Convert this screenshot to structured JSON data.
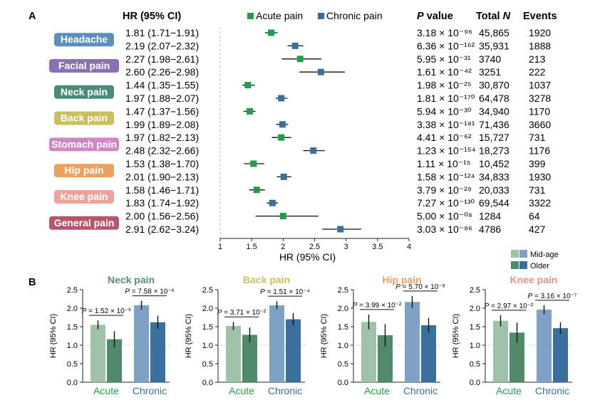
{
  "panel_a": {
    "label": "A",
    "header": {
      "hr": "HR (95% CI)",
      "acute": "Acute pain",
      "chronic": "Chronic pain",
      "p": "P value",
      "total": "Total N",
      "events": "Events"
    },
    "xlabel": "HR (95% CI)",
    "ticks": [
      "1",
      "1.5",
      "2",
      "2.5",
      "3",
      "3.5",
      "4"
    ],
    "colors": {
      "acute": "#1e9e4b",
      "chronic": "#3a6f9d"
    },
    "groups": [
      {
        "name": "Headache",
        "color": "#5b8fbc",
        "rows": [
          {
            "type": "acute",
            "hr_text": "1.81 (1.71−1.91)",
            "hr": 1.81,
            "lo": 1.71,
            "hi": 1.91,
            "p": "3.18 × 10⁻⁹⁶",
            "n": "45,865",
            "events": "1920"
          },
          {
            "type": "chronic",
            "hr_text": "2.19 (2.07−2.32)",
            "hr": 2.19,
            "lo": 2.07,
            "hi": 2.32,
            "p": "6.36 × 10⁻¹⁶²",
            "n": "35,931",
            "events": "1888"
          }
        ]
      },
      {
        "name": "Facial pain",
        "color": "#8a70b8",
        "rows": [
          {
            "type": "acute",
            "hr_text": "2.27 (1.98−2.61)",
            "hr": 2.27,
            "lo": 1.98,
            "hi": 2.61,
            "p": "5.95 × 10⁻³¹",
            "n": "3740",
            "events": "213"
          },
          {
            "type": "chronic",
            "hr_text": "2.60 (2.26−2.98)",
            "hr": 2.6,
            "lo": 2.26,
            "hi": 2.98,
            "p": "1.61 × 10⁻⁴²",
            "n": "3251",
            "events": "222"
          }
        ]
      },
      {
        "name": "Neck pain",
        "color": "#4a8a78",
        "rows": [
          {
            "type": "acute",
            "hr_text": "1.44 (1.35−1.55)",
            "hr": 1.44,
            "lo": 1.35,
            "hi": 1.55,
            "p": "1.98 × 10⁻²⁵",
            "n": "30,870",
            "events": "1037"
          },
          {
            "type": "chronic",
            "hr_text": "1.97 (1.88−2.07)",
            "hr": 1.97,
            "lo": 1.88,
            "hi": 2.07,
            "p": "1.81 × 10⁻¹⁷⁰",
            "n": "64,478",
            "events": "3278"
          }
        ]
      },
      {
        "name": "Back pain",
        "color": "#c9bf5e",
        "rows": [
          {
            "type": "acute",
            "hr_text": "1.47 (1.37−1.56)",
            "hr": 1.47,
            "lo": 1.37,
            "hi": 1.56,
            "p": "5.94 × 10⁻³⁰",
            "n": "34,940",
            "events": "1170"
          },
          {
            "type": "chronic",
            "hr_text": "1.99 (1.89−2.08)",
            "hr": 1.99,
            "lo": 1.89,
            "hi": 2.08,
            "p": "3.38 × 10⁻¹⁸¹",
            "n": "71,436",
            "events": "3660"
          }
        ]
      },
      {
        "name": "Stomach pain",
        "color": "#cf86c2",
        "rows": [
          {
            "type": "acute",
            "hr_text": "1.97 (1.82−2.13)",
            "hr": 1.97,
            "lo": 1.82,
            "hi": 2.13,
            "p": "4.41 × 10⁻⁶²",
            "n": "15,727",
            "events": "731"
          },
          {
            "type": "chronic",
            "hr_text": "2.48 (2.32−2.66)",
            "hr": 2.48,
            "lo": 2.32,
            "hi": 2.66,
            "p": "1.23 × 10⁻¹⁵⁴",
            "n": "18,273",
            "events": "1176"
          }
        ]
      },
      {
        "name": "Hip pain",
        "color": "#eda15e",
        "rows": [
          {
            "type": "acute",
            "hr_text": "1.53 (1.38−1.70)",
            "hr": 1.53,
            "lo": 1.38,
            "hi": 1.7,
            "p": "1.11 × 10⁻¹⁵",
            "n": "10,452",
            "events": "399"
          },
          {
            "type": "chronic",
            "hr_text": "2.01 (1.90−2.13)",
            "hr": 2.01,
            "lo": 1.9,
            "hi": 2.13,
            "p": "1.58 × 10⁻¹²⁴",
            "n": "34,833",
            "events": "1930"
          }
        ]
      },
      {
        "name": "Knee pain",
        "color": "#eda39c",
        "rows": [
          {
            "type": "acute",
            "hr_text": "1.58 (1.46−1.71)",
            "hr": 1.58,
            "lo": 1.46,
            "hi": 1.71,
            "p": "3.79 × 10⁻²⁹",
            "n": "20,033",
            "events": "731"
          },
          {
            "type": "chronic",
            "hr_text": "1.83 (1.74−1.92)",
            "hr": 1.83,
            "lo": 1.74,
            "hi": 1.92,
            "p": "7.27 × 10⁻¹³⁰",
            "n": "69,544",
            "events": "3322"
          }
        ]
      },
      {
        "name": "General pain",
        "color": "#b5566c",
        "rows": [
          {
            "type": "acute",
            "hr_text": "2.00 (1.56−2.56)",
            "hr": 2.0,
            "lo": 1.56,
            "hi": 2.56,
            "p": "5.00 × 10⁻⁰⁸",
            "n": "1284",
            "events": "64"
          },
          {
            "type": "chronic",
            "hr_text": "2.91 (2.62−3.24)",
            "hr": 2.91,
            "lo": 2.62,
            "hi": 3.24,
            "p": "3.03 × 10⁻⁸⁶",
            "n": "4786",
            "events": "427"
          }
        ]
      }
    ]
  },
  "panel_b": {
    "label": "B",
    "legend": {
      "midage": "Mid-age",
      "older": "Older"
    },
    "ylabel": "HR (95% CI)",
    "yticks": [
      "0.0",
      "0.5",
      "1.0",
      "1.5",
      "2.0",
      "2.5"
    ],
    "categories": [
      "Acute",
      "Chronic"
    ],
    "category_color": "#1e9e4b",
    "chronic_label_color": "#3a6f9d",
    "colors": {
      "acute_mid": "#9fc2a9",
      "acute_old": "#4f8a6a",
      "chronic_mid": "#7ea2c6",
      "chronic_old": "#3b6f9e"
    }
  },
  "chart_data": [
    {
      "type": "forest",
      "xlabel": "HR (95% CI)",
      "xlim": [
        1,
        4
      ],
      "series": [
        "Acute pain",
        "Chronic pain"
      ],
      "categories": [
        "Headache",
        "Facial pain",
        "Neck pain",
        "Back pain",
        "Stomach pain",
        "Hip pain",
        "Knee pain",
        "General pain"
      ]
    },
    {
      "type": "bar",
      "title": "Neck pain",
      "title_color": "#5b8a72",
      "ylabel": "HR (95% CI)",
      "ylim": [
        0,
        2.5
      ],
      "categories": [
        "Acute",
        "Chronic"
      ],
      "series": [
        {
          "name": "Mid-age",
          "values": [
            1.55,
            2.08
          ],
          "err": [
            0.12,
            0.12
          ]
        },
        {
          "name": "Older",
          "values": [
            1.16,
            1.62
          ],
          "err": [
            0.22,
            0.18
          ]
        }
      ],
      "p_acute": "P = 1.52 × 10⁻³",
      "p_chronic": "P = 7.58 × 10⁻⁶"
    },
    {
      "type": "bar",
      "title": "Back pain",
      "title_color": "#c9bf5e",
      "ylabel": "HR (95% CI)",
      "ylim": [
        0,
        2.5
      ],
      "categories": [
        "Acute",
        "Chronic"
      ],
      "series": [
        {
          "name": "Mid-age",
          "values": [
            1.52,
            2.08
          ],
          "err": [
            0.11,
            0.11
          ]
        },
        {
          "name": "Older",
          "values": [
            1.28,
            1.7
          ],
          "err": [
            0.2,
            0.17
          ]
        }
      ],
      "p_acute": "P = 3.71 × 10⁻²",
      "p_chronic": "P = 1.51 × 10⁻⁴"
    },
    {
      "type": "bar",
      "title": "Hip pain",
      "title_color": "#eda15e",
      "ylabel": "HR (95% CI)",
      "ylim": [
        0,
        2.5
      ],
      "categories": [
        "Acute",
        "Chronic"
      ],
      "series": [
        {
          "name": "Mid-age",
          "values": [
            1.63,
            2.17
          ],
          "err": [
            0.2,
            0.16
          ]
        },
        {
          "name": "Older",
          "values": [
            1.27,
            1.54
          ],
          "err": [
            0.3,
            0.2
          ]
        }
      ],
      "p_acute": "P = 3.99 × 10⁻²",
      "p_chronic": "P = 5.70 × 10⁻⁸"
    },
    {
      "type": "bar",
      "title": "Knee pain",
      "title_color": "#ea8f89",
      "ylabel": "HR (95% CI)",
      "ylim": [
        0,
        2.5
      ],
      "categories": [
        "Acute",
        "Chronic"
      ],
      "series": [
        {
          "name": "Mid-age",
          "values": [
            1.66,
            1.96
          ],
          "err": [
            0.15,
            0.12
          ]
        },
        {
          "name": "Older",
          "values": [
            1.34,
            1.46
          ],
          "err": [
            0.27,
            0.16
          ]
        }
      ],
      "p_acute": "P = 2.97 × 10⁻²",
      "p_chronic": "P = 3.16 × 10⁻⁷"
    }
  ]
}
